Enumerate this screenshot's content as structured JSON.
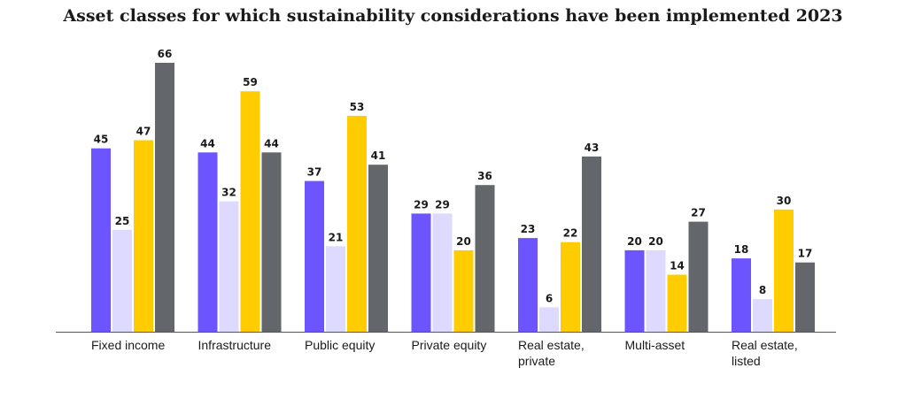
{
  "chart_data": {
    "type": "bar",
    "title": "Asset classes for which sustainability considerations have been implemented 2023",
    "xlabel": "",
    "ylabel": "",
    "ylim": [
      0,
      66
    ],
    "grid": false,
    "legend": "none",
    "categories": [
      [
        "Fixed income"
      ],
      [
        "Infrastructure"
      ],
      [
        "Public equity"
      ],
      [
        "Private equity"
      ],
      [
        "Real estate,",
        "private"
      ],
      [
        "Multi-asset"
      ],
      [
        "Real estate,",
        "listed"
      ]
    ],
    "series": [
      {
        "color": "#6c55ff",
        "values": [
          45,
          44,
          37,
          29,
          23,
          20,
          18
        ]
      },
      {
        "color": "#dedaff",
        "values": [
          25,
          32,
          21,
          29,
          6,
          20,
          8
        ]
      },
      {
        "color": "#ffcc00",
        "values": [
          47,
          59,
          53,
          20,
          22,
          14,
          30
        ]
      },
      {
        "color": "#63666a",
        "values": [
          66,
          44,
          41,
          36,
          43,
          27,
          17
        ]
      }
    ]
  }
}
